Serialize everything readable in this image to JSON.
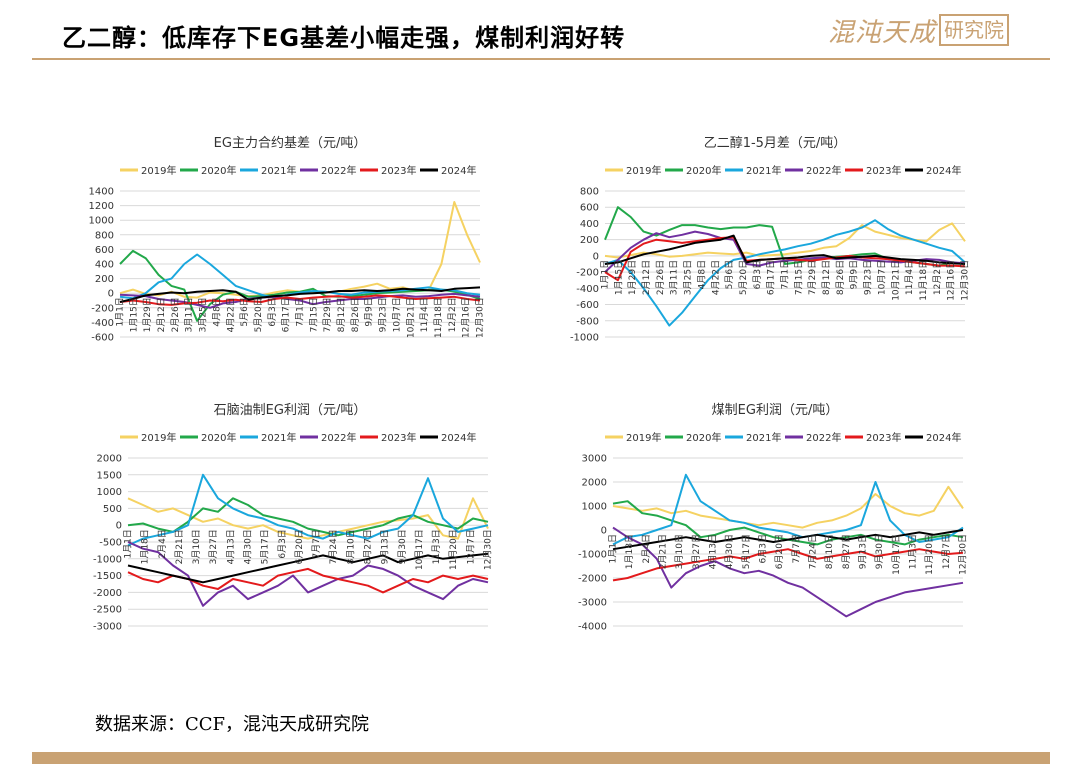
{
  "header": {
    "title": "乙二醇：低库存下EG基差小幅走强，煤制利润好转",
    "logo_script": "混沌天成",
    "logo_box": "研究院"
  },
  "footer": {
    "source": "数据来源：CCF，混沌天成研究院"
  },
  "colors": {
    "2019年": "#f5d262",
    "2020年": "#22a84a",
    "2021年": "#1aa7dd",
    "2022年": "#7030a0",
    "2023年": "#e31a1c",
    "2024年": "#000000",
    "accent": "#c9a273"
  },
  "chart_data": [
    {
      "type": "line",
      "title": "EG主力合约基差（元/吨）",
      "legend": [
        "2019年",
        "2020年",
        "2021年",
        "2022年",
        "2023年",
        "2024年"
      ],
      "legend_placement": "top",
      "yticks": [
        1400,
        1200,
        1000,
        800,
        600,
        400,
        200,
        0,
        -200,
        -400,
        -600
      ],
      "ylim": [
        -600,
        1400
      ],
      "xticks": [
        "1月1日",
        "1月15日",
        "1月29日",
        "2月12日",
        "2月26日",
        "3月11日",
        "3月25日",
        "4月8日",
        "4月22日",
        "5月6日",
        "5月20日",
        "6月3日",
        "6月17日",
        "7月1日",
        "7月15日",
        "7月29日",
        "8月12日",
        "8月26日",
        "9月9日",
        "9月23日",
        "10月7日",
        "10月21日",
        "11月4日",
        "11月18日",
        "12月2日",
        "12月16日",
        "12月30日"
      ],
      "grid": true,
      "series": [
        {
          "name": "2019年",
          "values": [
            0,
            50,
            -10,
            -30,
            20,
            -50,
            -60,
            10,
            0,
            -20,
            -40,
            -30,
            10,
            40,
            20,
            0,
            10,
            20,
            60,
            90,
            130,
            60,
            80,
            30,
            40,
            400,
            1250,
            800,
            420
          ]
        },
        {
          "name": "2020年",
          "values": [
            400,
            580,
            480,
            250,
            100,
            50,
            -380,
            -150,
            -20,
            20,
            -50,
            -40,
            -20,
            10,
            20,
            60,
            -40,
            -50,
            -40,
            -20,
            0,
            10,
            20,
            30,
            40,
            50,
            20,
            -20,
            -80
          ]
        },
        {
          "name": "2021年",
          "values": [
            -50,
            -70,
            0,
            150,
            200,
            400,
            530,
            400,
            250,
            100,
            40,
            -20,
            -60,
            -20,
            10,
            30,
            20,
            -10,
            -20,
            10,
            20,
            30,
            40,
            60,
            80,
            50,
            40,
            0,
            -20
          ]
        },
        {
          "name": "2022年",
          "values": [
            -20,
            -30,
            -40,
            -80,
            -100,
            -120,
            -160,
            -200,
            -140,
            -120,
            -80,
            -60,
            -50,
            -80,
            -100,
            -150,
            -120,
            -100,
            -80,
            -80,
            -60,
            -40,
            -30,
            -50,
            -40,
            -20,
            -10,
            -30,
            -50
          ]
        },
        {
          "name": "2023年",
          "values": [
            -120,
            -100,
            -120,
            -150,
            -160,
            -140,
            -130,
            -100,
            -110,
            -90,
            -110,
            -120,
            -80,
            -60,
            -80,
            -60,
            -50,
            -40,
            -60,
            -50,
            -30,
            -40,
            -60,
            -80,
            -70,
            -60,
            -50,
            -80,
            -100
          ]
        },
        {
          "name": "2024年",
          "values": [
            -120,
            -80,
            -30,
            -10,
            10,
            0,
            20,
            30,
            40,
            20,
            -90,
            -60,
            -40,
            -30,
            -10,
            0,
            10,
            30,
            30,
            40,
            30,
            40,
            60,
            50,
            40,
            30,
            60,
            70,
            80
          ]
        }
      ]
    },
    {
      "type": "line",
      "title": "乙二醇1-5月差（元/吨）",
      "legend": [
        "2019年",
        "2020年",
        "2021年",
        "2022年",
        "2023年",
        "2024年"
      ],
      "legend_placement": "top",
      "yticks": [
        800,
        600,
        400,
        200,
        0,
        -200,
        -400,
        -600,
        -800,
        -1000
      ],
      "ylim": [
        -1000,
        800
      ],
      "xticks": [
        "1月1日",
        "1月15日",
        "1月29日",
        "2月12日",
        "2月26日",
        "3月11日",
        "3月25日",
        "4月8日",
        "4月22日",
        "5月6日",
        "5月20日",
        "6月3日",
        "6月17日",
        "7月1日",
        "7月15日",
        "7月29日",
        "8月12日",
        "8月26日",
        "9月9日",
        "9月23日",
        "10月7日",
        "10月21日",
        "11月4日",
        "11月18日",
        "12月2日",
        "12月16日",
        "12月30日"
      ],
      "grid": true,
      "series": [
        {
          "name": "2019年",
          "values": [
            0,
            -20,
            10,
            40,
            20,
            -10,
            0,
            20,
            40,
            30,
            20,
            40,
            0,
            10,
            20,
            40,
            60,
            100,
            120,
            220,
            380,
            300,
            260,
            220,
            200,
            180,
            320,
            400,
            180
          ]
        },
        {
          "name": "2020年",
          "values": [
            200,
            600,
            480,
            300,
            250,
            320,
            380,
            380,
            350,
            330,
            350,
            350,
            380,
            360,
            -100,
            -80,
            -50,
            -30,
            -10,
            0,
            20,
            30,
            -40,
            -60,
            -80,
            -100,
            -120,
            -80,
            -100
          ]
        },
        {
          "name": "2021年",
          "values": [
            -100,
            -50,
            -200,
            -400,
            -620,
            -860,
            -700,
            -500,
            -300,
            -150,
            -50,
            -20,
            20,
            50,
            80,
            120,
            150,
            200,
            260,
            300,
            350,
            440,
            330,
            250,
            200,
            150,
            100,
            60,
            -80
          ]
        },
        {
          "name": "2022年",
          "values": [
            -200,
            -50,
            100,
            200,
            280,
            230,
            260,
            300,
            270,
            220,
            200,
            -100,
            -120,
            -80,
            -60,
            -50,
            -30,
            -20,
            -40,
            -30,
            -50,
            -60,
            -70,
            -80,
            -60,
            -40,
            -50,
            -80,
            -90
          ]
        },
        {
          "name": "2023年",
          "values": [
            -200,
            -300,
            50,
            150,
            200,
            180,
            160,
            180,
            200,
            220,
            230,
            -60,
            -50,
            -40,
            -30,
            -50,
            -60,
            -40,
            -20,
            0,
            -20,
            -30,
            -40,
            -60,
            -80,
            -100,
            -120,
            -120,
            -130
          ]
        },
        {
          "name": "2024年",
          "values": [
            -100,
            -80,
            -30,
            20,
            50,
            80,
            120,
            160,
            180,
            200,
            250,
            -80,
            -50,
            -40,
            -30,
            -20,
            0,
            10,
            -30,
            -20,
            -10,
            0,
            -20,
            -40,
            -50,
            -60,
            -80,
            -90,
            -100
          ]
        }
      ]
    },
    {
      "type": "line",
      "title": "石脑油制EG利润（元/吨）",
      "legend": [
        "2019年",
        "2020年",
        "2021年",
        "2022年",
        "2023年",
        "2024年"
      ],
      "legend_placement": "top",
      "yticks": [
        2000,
        1500,
        1000,
        500,
        0,
        -500,
        -1000,
        -1500,
        -2000,
        -2500,
        -3000
      ],
      "ylim": [
        -3000,
        2000
      ],
      "xticks": [
        "1月1日",
        "1月18日",
        "2月4日",
        "2月21日",
        "3月10日",
        "3月27日",
        "4月13日",
        "4月30日",
        "5月17日",
        "6月3日",
        "6月20日",
        "7月7日",
        "7月24日",
        "8月10日",
        "8月27日",
        "9月13日",
        "9月30日",
        "10月17日",
        "11月3日",
        "11月20日",
        "12月7日",
        "12月30日"
      ],
      "grid": true,
      "series": [
        {
          "name": "2019年",
          "values": [
            800,
            600,
            400,
            500,
            300,
            100,
            200,
            0,
            -100,
            0,
            -200,
            -300,
            -400,
            -300,
            -200,
            -100,
            0,
            100,
            150,
            200,
            300,
            -300,
            -400,
            800,
            -100
          ]
        },
        {
          "name": "2020年",
          "values": [
            0,
            50,
            -100,
            -200,
            100,
            500,
            400,
            800,
            600,
            300,
            200,
            100,
            -100,
            -200,
            -300,
            -200,
            -100,
            0,
            200,
            300,
            100,
            0,
            -100,
            200,
            100
          ]
        },
        {
          "name": "2021年",
          "values": [
            -600,
            -400,
            -300,
            -200,
            0,
            1500,
            800,
            500,
            300,
            200,
            0,
            -100,
            -300,
            -400,
            -200,
            -300,
            -400,
            -200,
            -100,
            300,
            1400,
            200,
            -200,
            -100,
            0
          ]
        },
        {
          "name": "2022年",
          "values": [
            -500,
            -700,
            -800,
            -1200,
            -1500,
            -2400,
            -2000,
            -1800,
            -2200,
            -2000,
            -1800,
            -1500,
            -2000,
            -1800,
            -1600,
            -1500,
            -1200,
            -1300,
            -1500,
            -1800,
            -2000,
            -2200,
            -1800,
            -1600,
            -1700
          ]
        },
        {
          "name": "2023年",
          "values": [
            -1400,
            -1600,
            -1700,
            -1500,
            -1600,
            -1800,
            -1900,
            -1600,
            -1700,
            -1800,
            -1500,
            -1400,
            -1300,
            -1500,
            -1600,
            -1700,
            -1800,
            -2000,
            -1800,
            -1600,
            -1700,
            -1500,
            -1600,
            -1500,
            -1600
          ]
        },
        {
          "name": "2024年",
          "values": [
            -1200,
            -1300,
            -1400,
            -1500,
            -1600,
            -1700,
            -1600,
            -1500,
            -1400,
            -1300,
            -1200,
            -1100,
            -1000,
            -900,
            -1000,
            -1100,
            -1000,
            -900,
            -1100,
            -1000,
            -900,
            -1000,
            -950,
            -900,
            -850
          ]
        }
      ]
    },
    {
      "type": "line",
      "title": "煤制EG利润（元/吨）",
      "legend": [
        "2019年",
        "2020年",
        "2021年",
        "2022年",
        "2023年",
        "2024年"
      ],
      "legend_placement": "top",
      "yticks": [
        3000,
        2000,
        1000,
        0,
        -1000,
        -2000,
        -3000,
        -4000
      ],
      "ylim": [
        -4000,
        3000
      ],
      "xticks": [
        "1月1日",
        "1月18日",
        "2月4日",
        "2月21日",
        "3月10日",
        "3月27日",
        "4月13日",
        "4月30日",
        "5月17日",
        "6月3日",
        "6月20日",
        "7月7日",
        "7月24日",
        "8月10日",
        "8月27日",
        "9月13日",
        "9月30日",
        "10月17日",
        "11月3日",
        "11月20日",
        "12月7日",
        "12月30日"
      ],
      "grid": true,
      "series": [
        {
          "name": "2019年",
          "values": [
            1000,
            900,
            800,
            900,
            700,
            800,
            600,
            500,
            400,
            300,
            200,
            300,
            200,
            100,
            300,
            400,
            600,
            900,
            1500,
            1000,
            700,
            600,
            800,
            1800,
            900
          ]
        },
        {
          "name": "2020年",
          "values": [
            1100,
            1200,
            700,
            600,
            400,
            200,
            -300,
            -200,
            0,
            100,
            -100,
            -300,
            -400,
            -500,
            -600,
            -400,
            -300,
            -200,
            -400,
            -500,
            -600,
            -400,
            -300,
            -200,
            -300
          ]
        },
        {
          "name": "2021年",
          "values": [
            -600,
            -300,
            -200,
            0,
            200,
            2300,
            1200,
            800,
            400,
            300,
            100,
            0,
            -100,
            -300,
            -200,
            -100,
            0,
            200,
            2000,
            400,
            -200,
            -500,
            -400,
            -300,
            100
          ]
        },
        {
          "name": "2022年",
          "values": [
            100,
            -300,
            -600,
            -1200,
            -2400,
            -1800,
            -1500,
            -1300,
            -1600,
            -1800,
            -1700,
            -1900,
            -2200,
            -2400,
            -2800,
            -3200,
            -3600,
            -3300,
            -3000,
            -2800,
            -2600,
            -2500,
            -2400,
            -2300,
            -2200
          ]
        },
        {
          "name": "2023年",
          "values": [
            -2100,
            -2000,
            -1800,
            -1600,
            -1500,
            -1400,
            -1300,
            -1200,
            -1100,
            -1200,
            -1000,
            -900,
            -800,
            -1000,
            -1200,
            -1100,
            -1000,
            -900,
            -1100,
            -1000,
            -900,
            -800,
            -900,
            -1000,
            -950
          ]
        },
        {
          "name": "2024年",
          "values": [
            -800,
            -700,
            -600,
            -500,
            -400,
            -300,
            -400,
            -500,
            -400,
            -300,
            -400,
            -500,
            -400,
            -300,
            -200,
            -300,
            -400,
            -300,
            -200,
            -300,
            -200,
            -100,
            -200,
            -100,
            0
          ]
        }
      ]
    }
  ]
}
